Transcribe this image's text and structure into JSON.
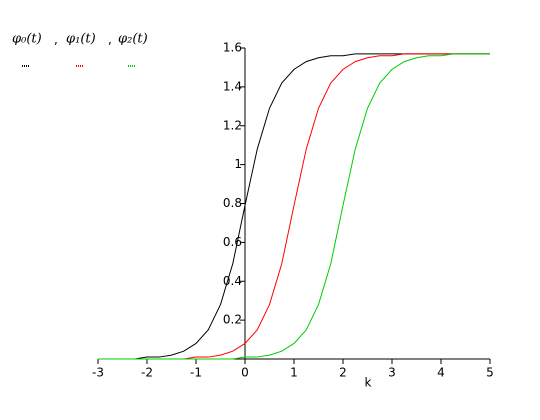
{
  "chart_data": {
    "type": "line",
    "x_label": "k",
    "x": [
      -3,
      -2.75,
      -2.5,
      -2.25,
      -2,
      -1.75,
      -1.5,
      -1.25,
      -1,
      -0.75,
      -0.5,
      -0.25,
      0,
      0.25,
      0.5,
      0.75,
      1,
      1.25,
      1.5,
      1.75,
      2,
      2.25,
      2.5,
      2.75,
      3,
      3.25,
      3.5,
      3.75,
      4,
      4.25,
      4.5,
      4.75,
      5
    ],
    "series": [
      {
        "name": "φ₀(t)",
        "color": "#000000",
        "values": [
          0,
          0,
          0,
          0,
          0.01,
          0.01,
          0.02,
          0.04,
          0.08,
          0.15,
          0.28,
          0.49,
          0.79,
          1.08,
          1.29,
          1.42,
          1.49,
          1.53,
          1.55,
          1.56,
          1.56,
          1.57,
          1.57,
          1.57,
          1.57,
          1.57,
          1.57,
          1.57,
          1.57,
          1.57,
          1.57,
          1.57,
          1.57
        ]
      },
      {
        "name": "φ₁(t)",
        "color": "#ff0000",
        "values": [
          0,
          0,
          0,
          0,
          0,
          0,
          0,
          0,
          0.01,
          0.01,
          0.02,
          0.04,
          0.08,
          0.15,
          0.28,
          0.49,
          0.79,
          1.08,
          1.29,
          1.42,
          1.49,
          1.53,
          1.55,
          1.56,
          1.56,
          1.57,
          1.57,
          1.57,
          1.57,
          1.57,
          1.57,
          1.57,
          1.57
        ]
      },
      {
        "name": "φ₂(t)",
        "color": "#00cc00",
        "values": [
          0,
          0,
          0,
          0,
          0,
          0,
          0,
          0,
          0,
          0,
          0,
          0,
          0.01,
          0.01,
          0.02,
          0.04,
          0.08,
          0.15,
          0.28,
          0.49,
          0.79,
          1.08,
          1.29,
          1.42,
          1.49,
          1.53,
          1.55,
          1.56,
          1.56,
          1.57,
          1.57,
          1.57,
          1.57
        ]
      }
    ],
    "xlim": [
      -3,
      5
    ],
    "ylim": [
      0,
      1.6
    ],
    "xticks": [
      -3,
      -2,
      -1,
      0,
      1,
      2,
      3,
      4,
      5
    ],
    "yticks": [
      0.2,
      0.4,
      0.6,
      0.8,
      1,
      1.2,
      1.4,
      1.6
    ]
  }
}
